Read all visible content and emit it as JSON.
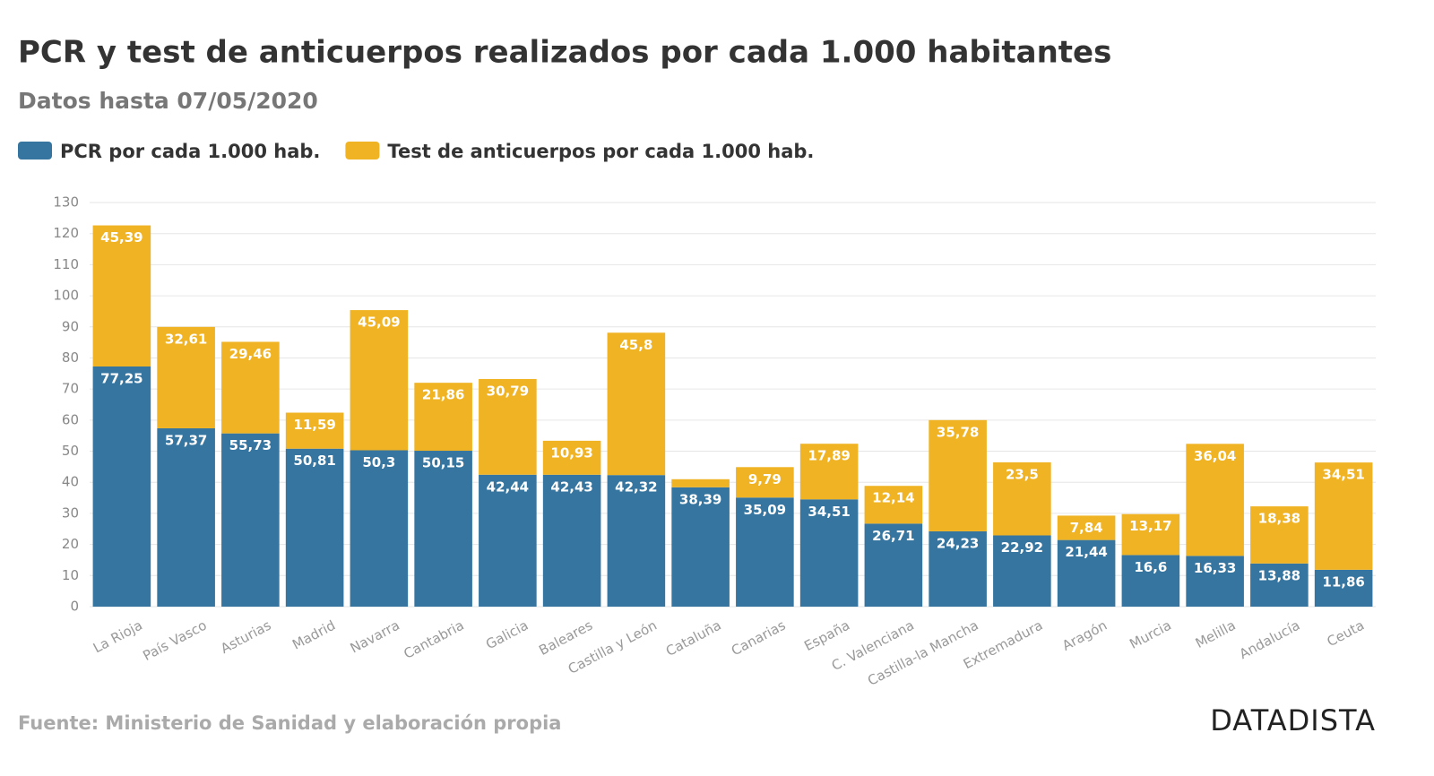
{
  "chart_data": {
    "type": "stacked_bar",
    "title": "PCR y test de anticuerpos realizados por cada 1.000 habitantes",
    "subtitle": "Datos hasta 07/05/2020",
    "source": "Fuente: Ministerio de Sanidad y elaboración propia",
    "brand": "DATADISTA",
    "categories": [
      "La Rioja",
      "País Vasco",
      "Asturias",
      "Madrid",
      "Navarra",
      "Cantabria",
      "Galicia",
      "Baleares",
      "Castilla y León",
      "Cataluña",
      "Canarias",
      "España",
      "C. Valenciana",
      "Castilla-la Mancha",
      "Extremadura",
      "Aragón",
      "Murcia",
      "Melilla",
      "Andalucía",
      "Ceuta"
    ],
    "series": [
      {
        "name": "PCR por cada 1.000 hab.",
        "color": "#36759f",
        "values": [
          77.25,
          57.37,
          55.73,
          50.81,
          50.3,
          50.15,
          42.44,
          42.43,
          42.32,
          38.39,
          35.09,
          34.51,
          26.71,
          24.23,
          22.92,
          21.44,
          16.6,
          16.33,
          13.88,
          11.86
        ],
        "value_labels": [
          "77,25",
          "57,37",
          "55,73",
          "50,81",
          "50,3",
          "50,15",
          "42,44",
          "42,43",
          "42,32",
          "38,39",
          "35,09",
          "34,51",
          "26,71",
          "24,23",
          "22,92",
          "21,44",
          "16,6",
          "16,33",
          "13,88",
          "11,86"
        ]
      },
      {
        "name": "Test de anticuerpos por cada 1.000 hab.",
        "color": "#f0b323",
        "values": [
          45.39,
          32.61,
          29.46,
          11.59,
          45.09,
          21.86,
          30.79,
          10.93,
          45.8,
          2.6,
          9.79,
          17.89,
          12.14,
          35.78,
          23.5,
          7.84,
          13.17,
          36.04,
          18.38,
          34.51
        ],
        "value_labels": [
          "45,39",
          "32,61",
          "29,46",
          "11,59",
          "45,09",
          "21,86",
          "30,79",
          "10,93",
          "45,8",
          null,
          "9,79",
          "17,89",
          "12,14",
          "35,78",
          "23,5",
          "7,84",
          "13,17",
          "36,04",
          "18,38",
          "34,51"
        ]
      }
    ],
    "ylim": [
      0,
      130
    ],
    "yticks": [
      0,
      10,
      20,
      30,
      40,
      50,
      60,
      70,
      80,
      90,
      100,
      110,
      120,
      130
    ],
    "grid": true
  }
}
